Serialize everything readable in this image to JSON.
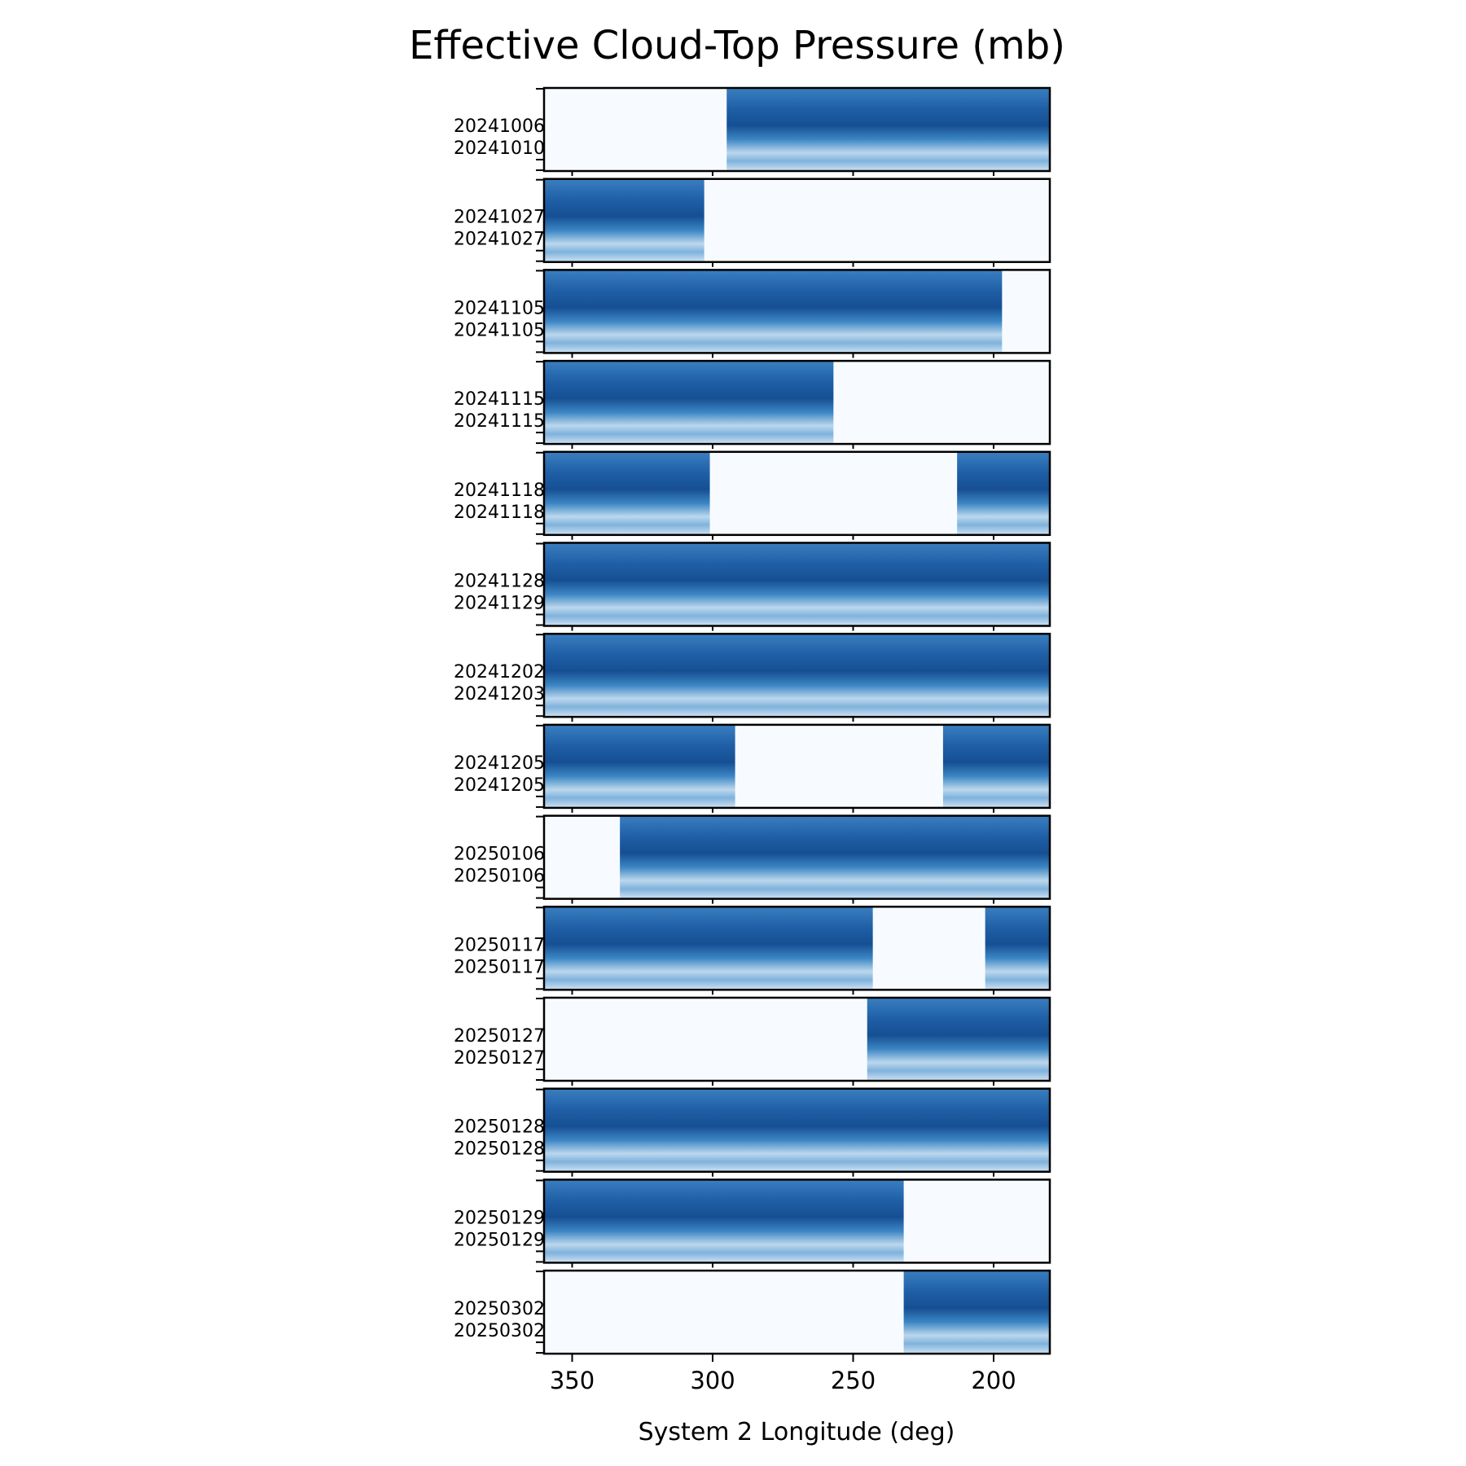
{
  "chart_data": {
    "type": "heatmap",
    "title": "Effective Cloud-Top Pressure (mb)",
    "xlabel": "System 2 Longitude (deg)",
    "ylabel": "",
    "xlim": [
      360,
      180
    ],
    "x_ticks": [
      350,
      300,
      250,
      200
    ],
    "x_tick_labels": [
      "350",
      "300",
      "250",
      "200"
    ],
    "colormap": "Blues",
    "colors": {
      "background": "#f7fbff",
      "low": "#c6dbef",
      "mid": "#4292c6",
      "high": "#08306b",
      "frame": "#000000"
    },
    "panels": [
      {
        "label_top": "20241006",
        "label_bottom": "20241010",
        "coverage": [
          [
            295,
            180
          ]
        ]
      },
      {
        "label_top": "20241027",
        "label_bottom": "20241027",
        "coverage": [
          [
            360,
            303
          ]
        ]
      },
      {
        "label_top": "20241105",
        "label_bottom": "20241105",
        "coverage": [
          [
            360,
            197
          ]
        ]
      },
      {
        "label_top": "20241115",
        "label_bottom": "20241115",
        "coverage": [
          [
            360,
            257
          ]
        ]
      },
      {
        "label_top": "20241118",
        "label_bottom": "20241118",
        "coverage": [
          [
            360,
            301
          ],
          [
            213,
            180
          ]
        ]
      },
      {
        "label_top": "20241128",
        "label_bottom": "20241129",
        "coverage": [
          [
            360,
            180
          ]
        ]
      },
      {
        "label_top": "20241202",
        "label_bottom": "20241203",
        "coverage": [
          [
            360,
            180
          ]
        ]
      },
      {
        "label_top": "20241205",
        "label_bottom": "20241205",
        "coverage": [
          [
            360,
            292
          ],
          [
            218,
            180
          ]
        ]
      },
      {
        "label_top": "20250106",
        "label_bottom": "20250106",
        "coverage": [
          [
            333,
            180
          ]
        ]
      },
      {
        "label_top": "20250117",
        "label_bottom": "20250117",
        "coverage": [
          [
            360,
            243
          ],
          [
            203,
            180
          ]
        ]
      },
      {
        "label_top": "20250127",
        "label_bottom": "20250127",
        "coverage": [
          [
            245,
            180
          ]
        ]
      },
      {
        "label_top": "20250128",
        "label_bottom": "20250128",
        "coverage": [
          [
            360,
            180
          ]
        ]
      },
      {
        "label_top": "20250129",
        "label_bottom": "20250129",
        "coverage": [
          [
            360,
            232
          ]
        ]
      },
      {
        "label_top": "20250302",
        "label_bottom": "20250302",
        "coverage": [
          [
            232,
            180
          ]
        ]
      }
    ]
  }
}
